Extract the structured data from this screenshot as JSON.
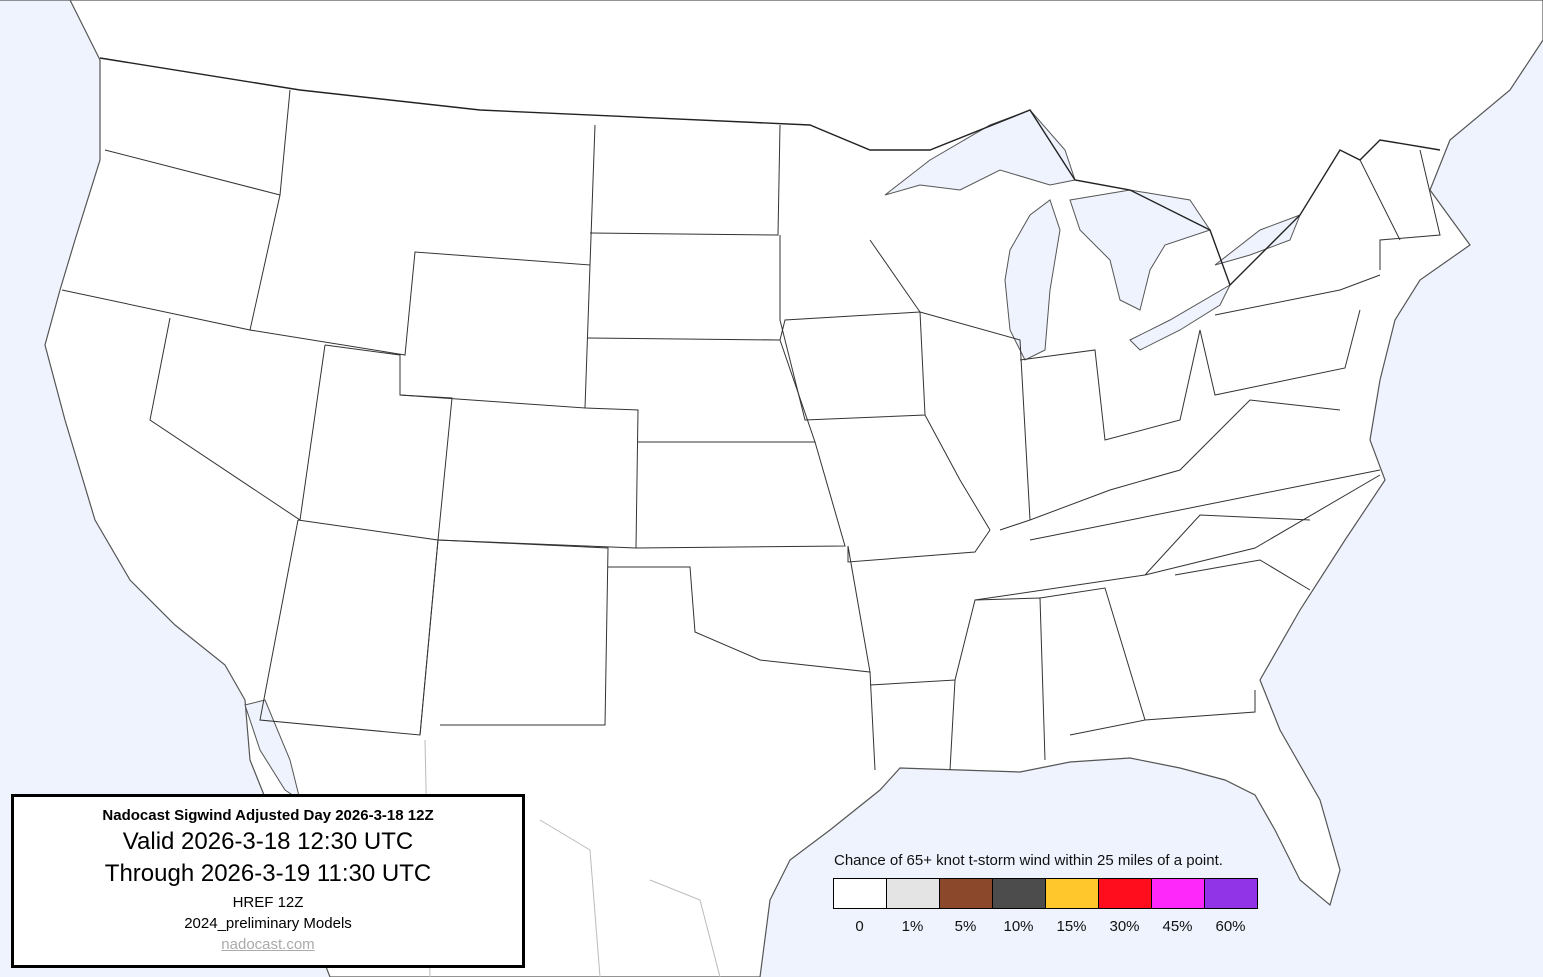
{
  "title_box": {
    "title": "Nadocast Sigwind Adjusted Day 2026-3-18 12Z",
    "valid": "Valid 2026-3-18 12:30 UTC",
    "through": "Through 2026-3-19 11:30 UTC",
    "model": "HREF 12Z",
    "models_version": "2024_preliminary Models",
    "link": "nadocast.com"
  },
  "legend": {
    "title": "Chance of 65+ knot t-storm wind within 25 miles of a point.",
    "items": [
      {
        "label": "0",
        "color": "#ffffff"
      },
      {
        "label": "1%",
        "color": "#e4e4e4"
      },
      {
        "label": "5%",
        "color": "#8b482a"
      },
      {
        "label": "10%",
        "color": "#4b4c4b"
      },
      {
        "label": "15%",
        "color": "#ffc72c"
      },
      {
        "label": "30%",
        "color": "#ff0d1c"
      },
      {
        "label": "45%",
        "color": "#ff28fa"
      },
      {
        "label": "60%",
        "color": "#9134e8"
      }
    ]
  },
  "colors": {
    "water": "#eef3fe",
    "land": "#ffffff"
  }
}
